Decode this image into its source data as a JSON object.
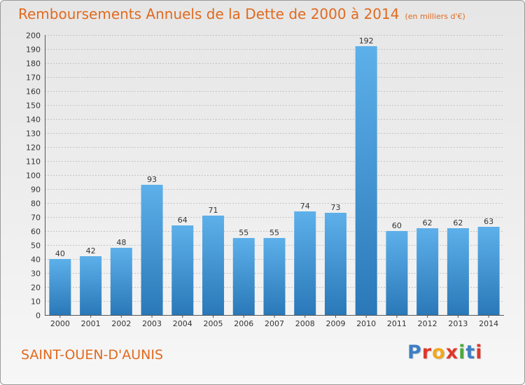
{
  "header": {
    "title": "Remboursements Annuels de la Dette de 2000 à 2014",
    "unit": "(en milliers d'€)"
  },
  "footer": {
    "commune": "SAINT-OUEN-D'AUNIS",
    "logo_letters": [
      "P",
      "r",
      "o",
      "x",
      "i",
      "t",
      "i"
    ]
  },
  "colors": {
    "title": "#e06a1e",
    "bar_light": "#5db0ea",
    "bar_dark": "#2a78b8",
    "logo": [
      "#3d7fc4",
      "#e0372a",
      "#f0a81e",
      "#e0372a",
      "#4fa83d",
      "#3d7fc4",
      "#e0372a"
    ]
  },
  "chart_data": {
    "type": "bar",
    "title": "Remboursements Annuels de la Dette de 2000 à 2014",
    "subtitle": "(en milliers d'€)",
    "xlabel": "",
    "ylabel": "",
    "categories": [
      "2000",
      "2001",
      "2002",
      "2003",
      "2004",
      "2005",
      "2006",
      "2007",
      "2008",
      "2009",
      "2010",
      "2011",
      "2012",
      "2013",
      "2014"
    ],
    "values": [
      40,
      42,
      48,
      93,
      64,
      71,
      55,
      55,
      74,
      73,
      192,
      60,
      62,
      62,
      63
    ],
    "ylim": [
      0,
      200
    ],
    "ytick_step": 10,
    "grid": true
  }
}
